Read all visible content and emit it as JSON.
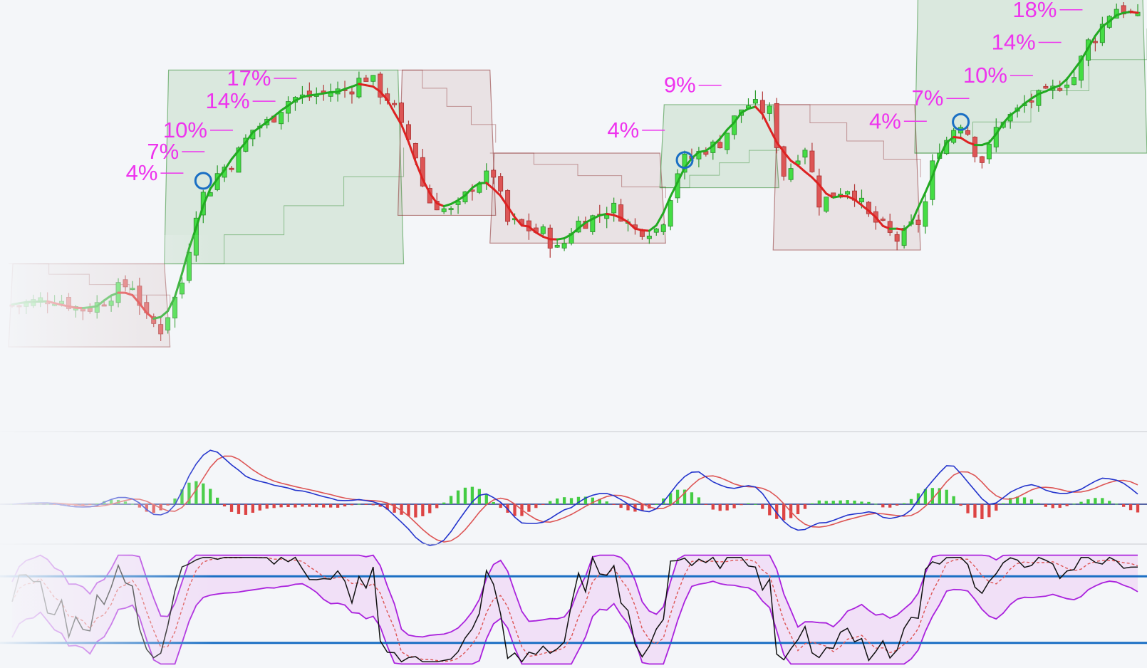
{
  "chart_data": [
    {
      "type": "candlestick",
      "panel": "price",
      "title": "",
      "colors": {
        "up": "#44dd44",
        "down": "#dd5555",
        "trend_up": "#22aa22",
        "trend_down": "#dd2222",
        "box_up": "#2e8b2e",
        "box_down": "#8b2e2e",
        "label": "#ee33ee",
        "marker": "#1a6fc4"
      },
      "regimes": [
        {
          "dir": "down",
          "start": 0,
          "end": 22,
          "top": 104,
          "bottom": 92
        },
        {
          "dir": "up",
          "start": 22,
          "end": 55,
          "top": 132,
          "bottom": 104
        },
        {
          "dir": "down",
          "start": 55,
          "end": 68,
          "top": 132,
          "bottom": 111
        },
        {
          "dir": "down",
          "start": 68,
          "end": 92,
          "top": 120,
          "bottom": 107
        },
        {
          "dir": "up",
          "start": 92,
          "end": 108,
          "top": 127,
          "bottom": 115
        },
        {
          "dir": "down",
          "start": 108,
          "end": 128,
          "top": 127,
          "bottom": 106
        },
        {
          "dir": "up",
          "start": 128,
          "end": 160,
          "top": 150,
          "bottom": 120
        }
      ],
      "entry_markers": [
        {
          "index": 27,
          "price": 116
        },
        {
          "index": 95,
          "price": 119
        },
        {
          "index": 134,
          "price": 124.5
        }
      ],
      "percent_labels": [
        {
          "text": "4%",
          "price": 117.1,
          "index": 25
        },
        {
          "text": "7%",
          "price": 120.2,
          "index": 28
        },
        {
          "text": "10%",
          "price": 123.3,
          "index": 32
        },
        {
          "text": "14%",
          "price": 127.5,
          "index": 38
        },
        {
          "text": "17%",
          "price": 130.8,
          "index": 41
        },
        {
          "text": "4%",
          "price": 123.3,
          "index": 93
        },
        {
          "text": "9%",
          "price": 129.8,
          "index": 101
        },
        {
          "text": "4%",
          "price": 124.6,
          "index": 130
        },
        {
          "text": "7%",
          "price": 127.9,
          "index": 136
        },
        {
          "text": "10%",
          "price": 131.2,
          "index": 145
        },
        {
          "text": "14%",
          "price": 136.0,
          "index": 149
        },
        {
          "text": "18%",
          "price": 140.7,
          "index": 152
        }
      ]
    },
    {
      "type": "line+bar",
      "panel": "macd",
      "colors": {
        "macd": "#2233cc",
        "signal": "#dd5555",
        "hist_up": "#44cc44",
        "hist_down": "#dd4444",
        "zero": "#223388"
      }
    },
    {
      "type": "line",
      "panel": "oscillator",
      "colors": {
        "main": "#111111",
        "signal": "#dd5555",
        "band": "#aa22dd",
        "band_fill": "#f0dcf7",
        "level": "#1a6fc4"
      },
      "levels": [
        80,
        20
      ],
      "ylim": [
        0,
        100
      ]
    }
  ]
}
